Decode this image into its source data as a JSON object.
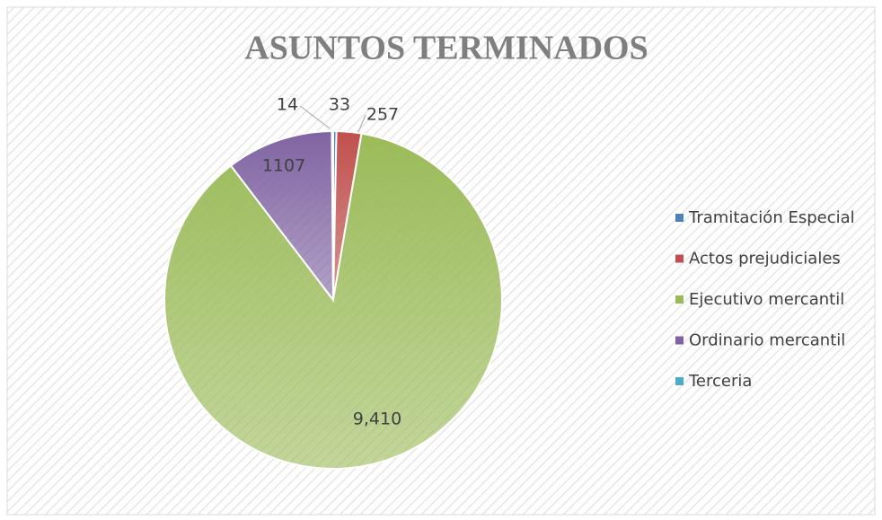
{
  "chart_data": {
    "type": "pie",
    "title": "ASUNTOS TERMINADOS",
    "categories": [
      "Tramitación Especial",
      "Actos prejudiciales",
      "Ejecutivo mercantil",
      "Ordinario mercantil",
      "Terceria"
    ],
    "values": [
      33,
      257,
      9410,
      1107,
      14
    ],
    "value_labels": [
      "33",
      "257",
      "9,410",
      "1107",
      "14"
    ],
    "colors": [
      "#4f81bd",
      "#c0504d",
      "#9bbb59",
      "#8064a2",
      "#4bacc6"
    ],
    "legend": "right"
  }
}
